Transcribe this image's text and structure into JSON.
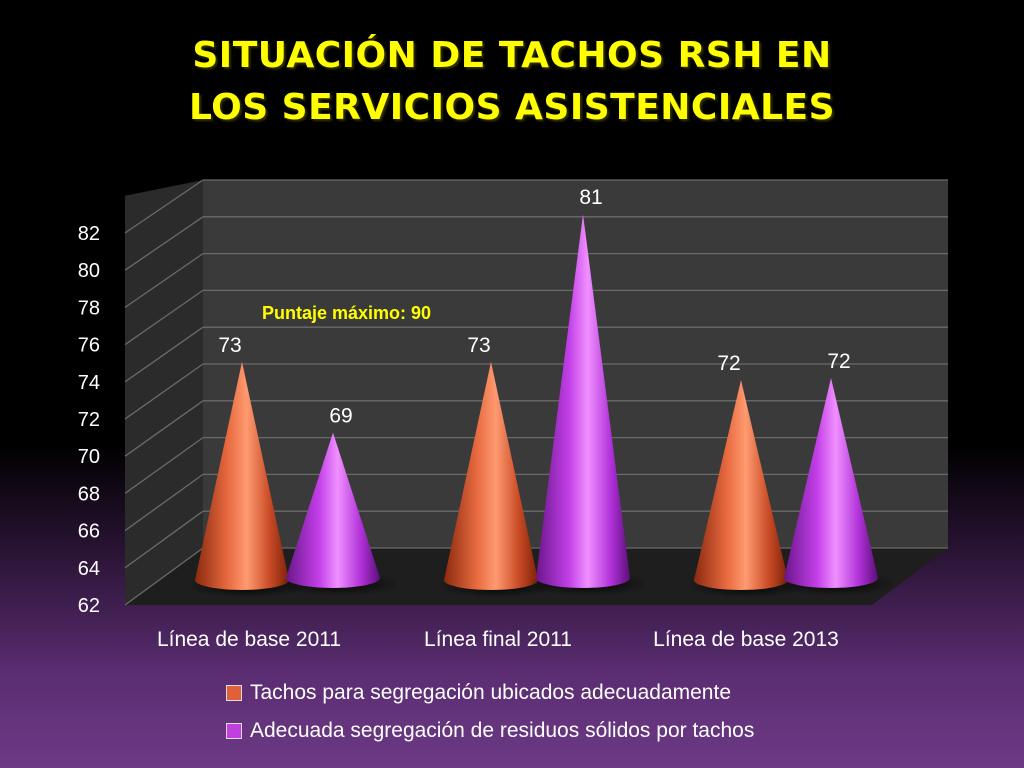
{
  "slide": {
    "title_line1": "SITUACIÓN DE TACHOS RSH EN",
    "title_line2": "LOS SERVICIOS ASISTENCIALES"
  },
  "chart_data": {
    "type": "bar",
    "shape": "cone",
    "categories": [
      "Línea de base 2011",
      "Línea final 2011",
      "Línea de base 2013"
    ],
    "series": [
      {
        "name": "Tachos para segregación ubicados adecuadamente",
        "values": [
          73,
          73,
          72
        ],
        "color": "#e0603a"
      },
      {
        "name": "Adecuada segregación de residuos sólidos por tachos",
        "values": [
          69,
          81,
          72
        ],
        "color": "#c13fe0"
      }
    ],
    "y_ticks": [
      "62",
      "64",
      "66",
      "68",
      "70",
      "72",
      "74",
      "76",
      "78",
      "80",
      "82"
    ],
    "ylim": [
      62,
      84
    ],
    "grid": true,
    "legend_position": "bottom",
    "annotation": "Puntaje máximo: 90",
    "annotation_color": "#ffff00",
    "wall_color": "#3a3a3a",
    "floor_color": "#1e1e1e",
    "gridline_color": "#6a6a6a"
  }
}
